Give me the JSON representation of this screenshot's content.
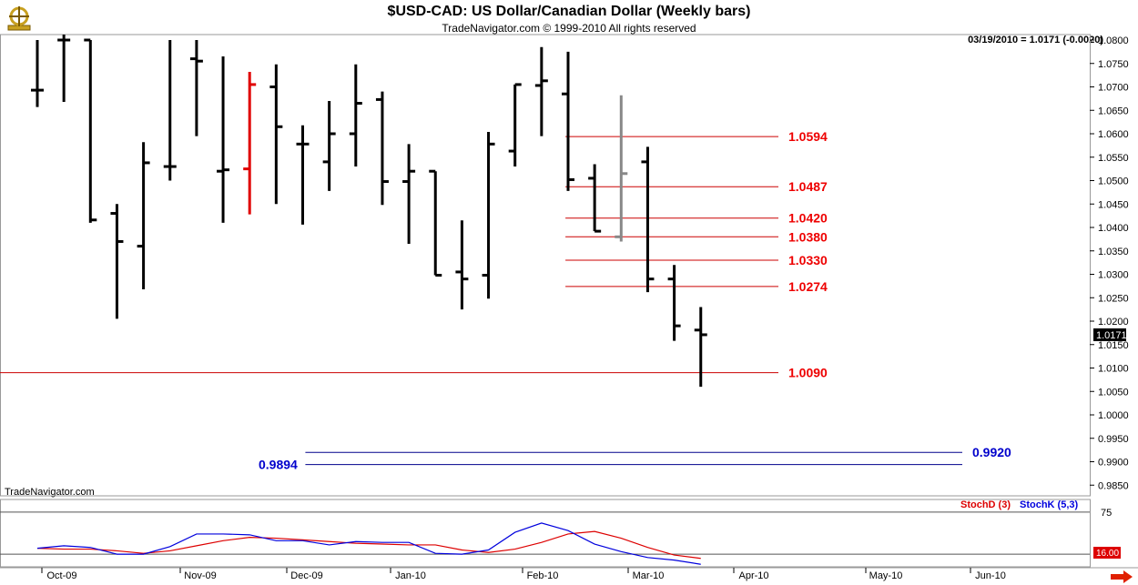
{
  "header": {
    "title": "$USD-CAD:  US Dollar/Canadian Dollar  (Weekly bars)",
    "subtitle": "TradeNavigator.com © 1999-2010 All rights reserved",
    "readout": "03/19/2010 = 1.0171 (-0.0020)",
    "watermark": "TradeNavigator.com",
    "last_price_tag": "1.0171"
  },
  "colors": {
    "bar": "#000000",
    "bar_highlight_red": "#e00000",
    "bar_highlight_gray": "#888888",
    "fib_line": "#cc0000",
    "fib_label": "#ee0000",
    "target_line": "#00008b",
    "target_label": "#0000cc",
    "stoch_d": "#dd0000",
    "stoch_k": "#0000dd"
  },
  "chart_data": [
    {
      "type": "ohlc",
      "title": "$USD-CAD:  US Dollar/Canadian Dollar  (Weekly bars)",
      "y_ticks": [
        "1.0800",
        "1.0750",
        "1.0700",
        "1.0650",
        "1.0600",
        "1.0550",
        "1.0500",
        "1.0450",
        "1.0400",
        "1.0350",
        "1.0300",
        "1.0250",
        "1.0200",
        "1.0150",
        "1.0100",
        "1.0050",
        "1.0000",
        "0.9950",
        "0.9900",
        "0.9850"
      ],
      "ylim": [
        0.982,
        1.0815
      ],
      "x_month_labels": [
        "Oct-09",
        "Nov-09",
        "Dec-09",
        "Jan-10",
        "Feb-10",
        "Mar-10",
        "Apr-10",
        "May-10",
        "Jun-10"
      ],
      "bars": [
        {
          "o": 1.0693,
          "h": 1.08,
          "l": 1.0657,
          "c": 1.0693,
          "color": "black"
        },
        {
          "o": 1.08,
          "h": 1.0815,
          "l": 1.0668,
          "c": 1.08,
          "color": "black"
        },
        {
          "o": 1.08,
          "h": 1.08,
          "l": 1.041,
          "c": 1.0416,
          "color": "black"
        },
        {
          "o": 1.043,
          "h": 1.045,
          "l": 1.0205,
          "c": 1.037,
          "color": "black"
        },
        {
          "o": 1.036,
          "h": 1.0582,
          "l": 1.0268,
          "c": 1.0538,
          "color": "black"
        },
        {
          "o": 1.053,
          "h": 1.08,
          "l": 1.05,
          "c": 1.053,
          "color": "black"
        },
        {
          "o": 1.076,
          "h": 1.08,
          "l": 1.0595,
          "c": 1.0755,
          "color": "black"
        },
        {
          "o": 1.052,
          "h": 1.0765,
          "l": 1.041,
          "c": 1.0523,
          "color": "black"
        },
        {
          "o": 1.0525,
          "h": 1.0732,
          "l": 1.0428,
          "c": 1.0705,
          "color": "red"
        },
        {
          "o": 1.07,
          "h": 1.0748,
          "l": 1.045,
          "c": 1.0615,
          "color": "black"
        },
        {
          "o": 1.0578,
          "h": 1.0618,
          "l": 1.0406,
          "c": 1.0578,
          "color": "black"
        },
        {
          "o": 1.054,
          "h": 1.067,
          "l": 1.0478,
          "c": 1.06,
          "color": "black"
        },
        {
          "o": 1.06,
          "h": 1.0748,
          "l": 1.053,
          "c": 1.0665,
          "color": "black"
        },
        {
          "o": 1.0673,
          "h": 1.069,
          "l": 1.0448,
          "c": 1.0498,
          "color": "black"
        },
        {
          "o": 1.0498,
          "h": 1.0578,
          "l": 1.0365,
          "c": 1.052,
          "color": "black"
        },
        {
          "o": 1.052,
          "h": 1.052,
          "l": 1.0298,
          "c": 1.0298,
          "color": "black"
        },
        {
          "o": 1.0305,
          "h": 1.0415,
          "l": 1.0225,
          "c": 1.029,
          "color": "black"
        },
        {
          "o": 1.0298,
          "h": 1.0604,
          "l": 1.0248,
          "c": 1.0578,
          "color": "black"
        },
        {
          "o": 1.0563,
          "h": 1.0705,
          "l": 1.053,
          "c": 1.0705,
          "color": "black"
        },
        {
          "o": 1.0703,
          "h": 1.0785,
          "l": 1.0595,
          "c": 1.0713,
          "color": "black"
        },
        {
          "o": 1.0685,
          "h": 1.0775,
          "l": 1.0478,
          "c": 1.0502,
          "color": "black"
        },
        {
          "o": 1.0505,
          "h": 1.0535,
          "l": 1.0392,
          "c": 1.0392,
          "color": "black"
        },
        {
          "o": 1.038,
          "h": 1.0682,
          "l": 1.037,
          "c": 1.0515,
          "color": "gray"
        },
        {
          "o": 1.054,
          "h": 1.0572,
          "l": 1.0262,
          "c": 1.029,
          "color": "black"
        },
        {
          "o": 1.029,
          "h": 1.032,
          "l": 1.0158,
          "c": 1.019,
          "color": "black"
        },
        {
          "o": 1.0181,
          "h": 1.023,
          "l": 1.006,
          "c": 1.0171,
          "color": "black"
        }
      ],
      "horizontal_lines": [
        {
          "value": 1.0594,
          "label": "1.0594",
          "kind": "fib",
          "start_week": 19.9
        },
        {
          "value": 1.0487,
          "label": "1.0487",
          "kind": "fib",
          "start_week": 19.9
        },
        {
          "value": 1.042,
          "label": "1.0420",
          "kind": "fib",
          "start_week": 19.9
        },
        {
          "value": 1.038,
          "label": "1.0380",
          "kind": "fib",
          "start_week": 19.9
        },
        {
          "value": 1.033,
          "label": "1.0330",
          "kind": "fib",
          "start_week": 19.9
        },
        {
          "value": 1.0274,
          "label": "1.0274",
          "kind": "fib",
          "start_week": 19.9
        },
        {
          "value": 1.009,
          "label": "1.0090",
          "kind": "fib",
          "start_week": -1.3
        },
        {
          "value": 0.992,
          "label": "0.9920",
          "kind": "target",
          "label_side": "right",
          "start_week": 10.1
        },
        {
          "value": 0.9894,
          "label": "0.9894",
          "kind": "target",
          "label_side": "left",
          "start_week": 10.1
        }
      ]
    },
    {
      "type": "line",
      "title": "",
      "ylim": [
        10,
        90
      ],
      "y_ticks": [
        "75"
      ],
      "reference_lines": [
        75,
        25
      ],
      "last_value_tag": "16.00",
      "series": [
        {
          "name": "StochD (3)",
          "color": "red",
          "values": [
            32,
            31,
            31,
            29,
            26,
            29,
            35,
            41,
            45,
            44,
            42,
            40,
            38,
            37,
            36,
            36,
            30,
            27,
            31,
            39,
            49,
            52,
            44,
            33,
            24,
            20
          ]
        },
        {
          "name": "StochK (5,3)",
          "color": "blue",
          "values": [
            32,
            35,
            33,
            25,
            25,
            34,
            49,
            49,
            48,
            41,
            41,
            36,
            40,
            39,
            39,
            26,
            25,
            30,
            51,
            62,
            53,
            37,
            28,
            21,
            18,
            13
          ]
        }
      ]
    }
  ]
}
